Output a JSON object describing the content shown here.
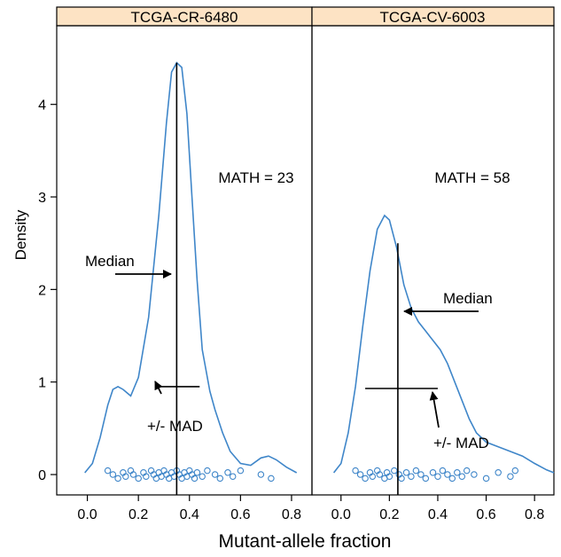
{
  "chart_data": {
    "type": "density",
    "ylabel": "Density",
    "xlabel": "Mutant-allele fraction",
    "xlim": [
      -0.12,
      0.88
    ],
    "ylim": [
      -0.22,
      4.85
    ],
    "x_ticks": [
      0.0,
      0.2,
      0.4,
      0.6,
      0.8
    ],
    "x_tick_labels": [
      "0.0",
      "0.2",
      "0.4",
      "0.6",
      "0.8"
    ],
    "y_ticks": [
      0,
      1,
      2,
      3,
      4
    ],
    "y_tick_labels": [
      "0",
      "1",
      "2",
      "3",
      "4"
    ],
    "colors": {
      "curve": "#3f86c9",
      "strip_bg": "#fde3c4",
      "points": "#3f86c9"
    },
    "panels": [
      {
        "name": "TCGA-CR-6480",
        "math_label": "MATH = 23",
        "median_label": "Median",
        "mad_label": "+/- MAD",
        "median": 0.35,
        "median_line_top": 4.45,
        "mad_segment": {
          "x0": 0.27,
          "x1": 0.44,
          "y": 0.95
        },
        "curve": [
          [
            -0.01,
            0.02
          ],
          [
            0.02,
            0.12
          ],
          [
            0.05,
            0.4
          ],
          [
            0.08,
            0.75
          ],
          [
            0.1,
            0.92
          ],
          [
            0.12,
            0.95
          ],
          [
            0.14,
            0.92
          ],
          [
            0.17,
            0.85
          ],
          [
            0.2,
            1.05
          ],
          [
            0.24,
            1.7
          ],
          [
            0.28,
            2.8
          ],
          [
            0.31,
            3.8
          ],
          [
            0.33,
            4.35
          ],
          [
            0.35,
            4.45
          ],
          [
            0.37,
            4.4
          ],
          [
            0.39,
            3.9
          ],
          [
            0.41,
            3.0
          ],
          [
            0.43,
            2.1
          ],
          [
            0.45,
            1.35
          ],
          [
            0.48,
            0.9
          ],
          [
            0.5,
            0.7
          ],
          [
            0.53,
            0.45
          ],
          [
            0.56,
            0.25
          ],
          [
            0.6,
            0.12
          ],
          [
            0.64,
            0.1
          ],
          [
            0.68,
            0.18
          ],
          [
            0.71,
            0.2
          ],
          [
            0.74,
            0.16
          ],
          [
            0.78,
            0.08
          ],
          [
            0.82,
            0.02
          ]
        ],
        "points": [
          0.08,
          0.1,
          0.12,
          0.14,
          0.15,
          0.17,
          0.18,
          0.2,
          0.22,
          0.23,
          0.25,
          0.26,
          0.27,
          0.28,
          0.29,
          0.3,
          0.31,
          0.32,
          0.33,
          0.34,
          0.35,
          0.36,
          0.37,
          0.38,
          0.39,
          0.4,
          0.41,
          0.42,
          0.43,
          0.45,
          0.47,
          0.5,
          0.52,
          0.55,
          0.57,
          0.6,
          0.68,
          0.72
        ]
      },
      {
        "name": "TCGA-CV-6003",
        "math_label": "MATH = 58",
        "median_label": "Median",
        "mad_label": "+/- MAD",
        "median": 0.235,
        "median_line_top": 2.5,
        "mad_segment": {
          "x0": 0.1,
          "x1": 0.4,
          "y": 0.93
        },
        "curve": [
          [
            -0.03,
            0.02
          ],
          [
            0.0,
            0.12
          ],
          [
            0.03,
            0.45
          ],
          [
            0.06,
            0.95
          ],
          [
            0.09,
            1.6
          ],
          [
            0.12,
            2.2
          ],
          [
            0.15,
            2.65
          ],
          [
            0.18,
            2.8
          ],
          [
            0.2,
            2.75
          ],
          [
            0.23,
            2.45
          ],
          [
            0.26,
            2.05
          ],
          [
            0.29,
            1.8
          ],
          [
            0.32,
            1.65
          ],
          [
            0.35,
            1.55
          ],
          [
            0.38,
            1.45
          ],
          [
            0.41,
            1.35
          ],
          [
            0.44,
            1.2
          ],
          [
            0.47,
            1.0
          ],
          [
            0.5,
            0.8
          ],
          [
            0.53,
            0.6
          ],
          [
            0.56,
            0.45
          ],
          [
            0.6,
            0.35
          ],
          [
            0.65,
            0.3
          ],
          [
            0.7,
            0.25
          ],
          [
            0.75,
            0.2
          ],
          [
            0.8,
            0.12
          ],
          [
            0.85,
            0.05
          ],
          [
            0.88,
            0.02
          ]
        ],
        "points": [
          0.06,
          0.08,
          0.1,
          0.12,
          0.13,
          0.15,
          0.16,
          0.18,
          0.19,
          0.2,
          0.22,
          0.24,
          0.25,
          0.27,
          0.29,
          0.31,
          0.33,
          0.35,
          0.38,
          0.4,
          0.42,
          0.44,
          0.46,
          0.48,
          0.5,
          0.52,
          0.55,
          0.6,
          0.65,
          0.7,
          0.72
        ]
      }
    ]
  }
}
